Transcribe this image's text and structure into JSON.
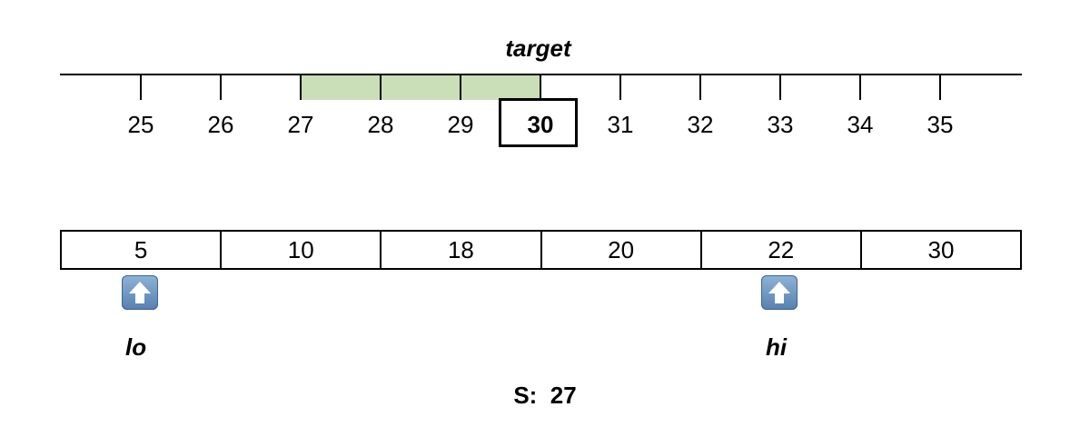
{
  "number_line": {
    "label": "target",
    "ticks": [
      "25",
      "26",
      "27",
      "28",
      "29",
      "30",
      "31",
      "32",
      "33",
      "34",
      "35"
    ],
    "target_value": "30",
    "shaded_range": [
      27,
      30
    ],
    "shade_color": "#cadfb8"
  },
  "array": {
    "values": [
      "5",
      "10",
      "18",
      "20",
      "22",
      "30"
    ]
  },
  "pointers": {
    "lo": {
      "label": "lo",
      "index": 0,
      "icon": "up-arrow-icon"
    },
    "hi": {
      "label": "hi",
      "index": 4,
      "icon": "up-arrow-icon"
    }
  },
  "sum": {
    "label": "S:",
    "value": "27"
  }
}
